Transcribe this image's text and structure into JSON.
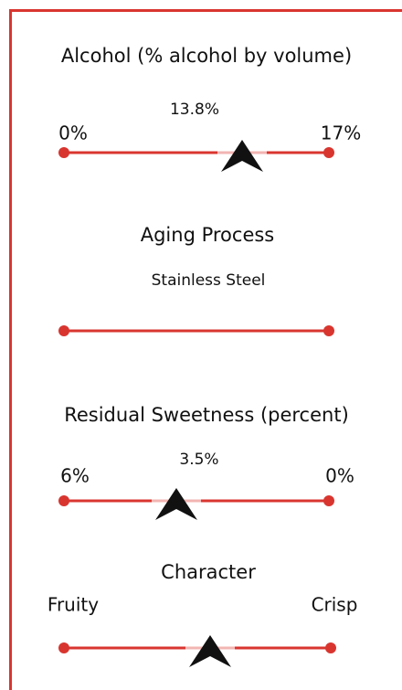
{
  "sections": [
    {
      "title": "Alcohol (% alcohol by volume)",
      "value": "13.8%",
      "left": "0%",
      "right": "17%"
    },
    {
      "title": "Aging Process",
      "value": "Stainless Steel"
    },
    {
      "title": "Residual Sweetness (percent)",
      "value": "3.5%",
      "left": "6%",
      "right": "0%"
    },
    {
      "title": "Character",
      "left": "Fruity",
      "right": "Crisp"
    }
  ]
}
